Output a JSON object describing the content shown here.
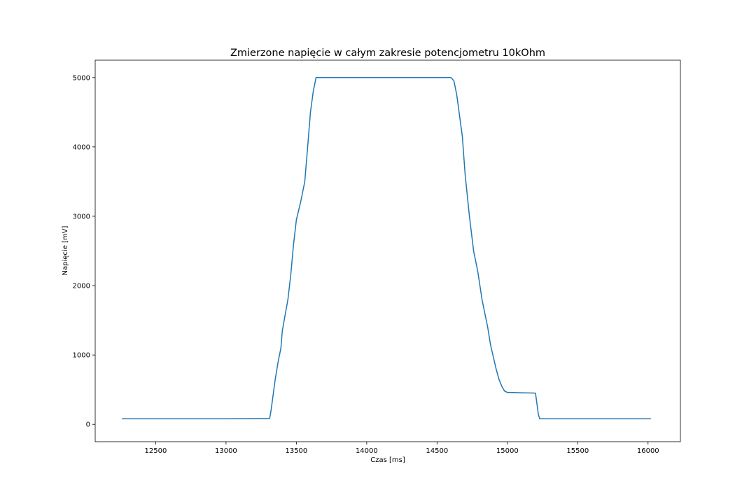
{
  "chart_data": {
    "type": "line",
    "title": "Zmierzone napięcie w całym zakresie potencjometru 10kOhm",
    "xlabel": "Czas [ms]",
    "ylabel": "Napięcie [mV]",
    "xlim": [
      12070,
      16230
    ],
    "ylim": [
      -250,
      5250
    ],
    "xticks": [
      12500,
      13000,
      13500,
      14000,
      14500,
      15000,
      15500,
      16000
    ],
    "yticks": [
      0,
      1000,
      2000,
      3000,
      4000,
      5000
    ],
    "grid": false,
    "series": [
      {
        "color": "#1f77b4",
        "x": [
          12260,
          13000,
          13310,
          13320,
          13350,
          13370,
          13390,
          13400,
          13440,
          13460,
          13480,
          13500,
          13530,
          13560,
          13580,
          13600,
          13620,
          13640,
          13650,
          13700,
          14000,
          14600,
          14620,
          14640,
          14660,
          14680,
          14700,
          14730,
          14760,
          14790,
          14820,
          14860,
          14880,
          14920,
          14940,
          14960,
          14980,
          15000,
          15020,
          15100,
          15200,
          15210,
          15220,
          15230,
          15300,
          15500,
          15800,
          16020
        ],
        "y": [
          80,
          80,
          85,
          200,
          650,
          900,
          1100,
          1350,
          1800,
          2150,
          2600,
          2950,
          3200,
          3500,
          4000,
          4500,
          4800,
          5000,
          5000,
          5000,
          5000,
          5000,
          4950,
          4750,
          4450,
          4150,
          3600,
          3000,
          2500,
          2200,
          1800,
          1400,
          1150,
          800,
          650,
          550,
          480,
          460,
          460,
          455,
          450,
          300,
          150,
          80,
          80,
          80,
          80,
          80
        ]
      }
    ]
  }
}
